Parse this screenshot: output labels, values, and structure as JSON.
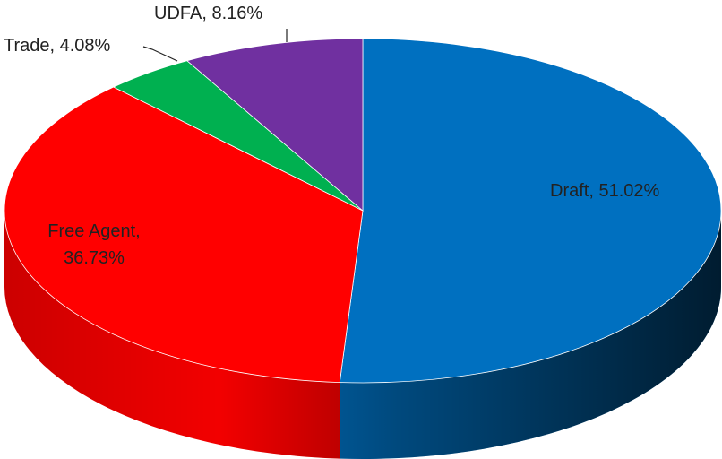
{
  "chart_data": {
    "type": "pie",
    "values": [
      51.02,
      36.73,
      4.08,
      8.16
    ],
    "value_labels": [
      "Draft, 51.02%",
      "Free Agent, 36.73%",
      "Trade, 4.08%",
      "UDFA, 8.16%"
    ],
    "colors": [
      "#0070c0",
      "#ff0000",
      "#00b050",
      "#7030a0"
    ]
  }
}
